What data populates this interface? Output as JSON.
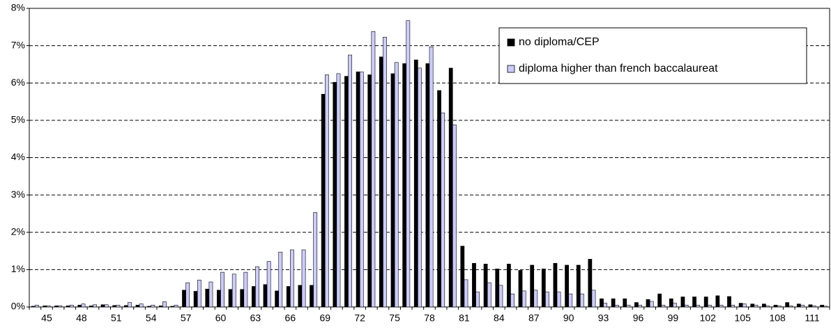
{
  "chart_data": {
    "type": "bar",
    "categories": [
      null,
      45,
      null,
      null,
      48,
      null,
      null,
      51,
      null,
      null,
      54,
      null,
      null,
      57,
      null,
      null,
      60,
      null,
      null,
      63,
      null,
      null,
      66,
      null,
      null,
      69,
      null,
      null,
      72,
      null,
      null,
      75,
      null,
      null,
      78,
      null,
      null,
      81,
      null,
      null,
      84,
      null,
      null,
      87,
      null,
      null,
      90,
      null,
      null,
      93,
      null,
      null,
      96,
      null,
      null,
      99,
      null,
      null,
      102,
      null,
      null,
      105,
      null,
      null,
      108,
      null,
      null,
      111,
      null
    ],
    "series": [
      {
        "name": "no diploma/CEP",
        "color": "#000000",
        "values": [
          0.02,
          0.03,
          0.03,
          0.03,
          0.05,
          0.03,
          0.06,
          0.04,
          0.04,
          0.05,
          0.02,
          0.03,
          0.02,
          0.45,
          0.42,
          0.48,
          0.45,
          0.47,
          0.47,
          0.55,
          0.6,
          0.43,
          0.55,
          0.58,
          0.58,
          5.7,
          6.02,
          6.18,
          6.3,
          6.22,
          6.7,
          6.25,
          6.52,
          6.62,
          6.52,
          5.8,
          6.4,
          1.63,
          1.17,
          1.15,
          1.02,
          1.15,
          0.98,
          1.12,
          1.02,
          1.17,
          1.12,
          1.12,
          1.28,
          0.22,
          0.22,
          0.22,
          0.12,
          0.2,
          0.35,
          0.22,
          0.27,
          0.27,
          0.27,
          0.3,
          0.28,
          0.1,
          0.08,
          0.08,
          0.05,
          0.12,
          0.08,
          0.06,
          0.05
        ]
      },
      {
        "name": "diploma higher than french baccalaureat",
        "color": "#ccccff",
        "values": [
          0.05,
          0.03,
          0.03,
          0.05,
          0.08,
          0.06,
          0.06,
          0.05,
          0.12,
          0.08,
          0.05,
          0.14,
          0.05,
          0.65,
          0.72,
          0.67,
          0.93,
          0.88,
          0.93,
          1.08,
          1.22,
          1.47,
          1.53,
          1.53,
          2.53,
          6.22,
          6.25,
          6.75,
          6.3,
          7.38,
          7.23,
          6.55,
          7.67,
          6.4,
          6.97,
          5.2,
          4.88,
          0.73,
          0.4,
          0.65,
          0.58,
          0.35,
          0.43,
          0.45,
          0.4,
          0.4,
          0.35,
          0.35,
          0.45,
          0.1,
          0.05,
          0.05,
          0.05,
          0.15,
          0.05,
          0.1,
          0.05,
          0.05,
          0.05,
          0.05,
          0.05,
          0.08,
          0.05,
          0.03,
          0.03,
          0.03,
          0.05,
          0.03,
          0.02
        ]
      }
    ],
    "ylim": [
      0,
      8
    ],
    "yticks": [
      {
        "value": 0,
        "label": "0%"
      },
      {
        "value": 1,
        "label": "1%"
      },
      {
        "value": 2,
        "label": "2%"
      },
      {
        "value": 3,
        "label": "3%"
      },
      {
        "value": 4,
        "label": "4%"
      },
      {
        "value": 5,
        "label": "5%"
      },
      {
        "value": 6,
        "label": "6%"
      },
      {
        "value": 7,
        "label": "7%"
      },
      {
        "value": 8,
        "label": "8%"
      }
    ],
    "grid": true,
    "legend": "top-right"
  }
}
